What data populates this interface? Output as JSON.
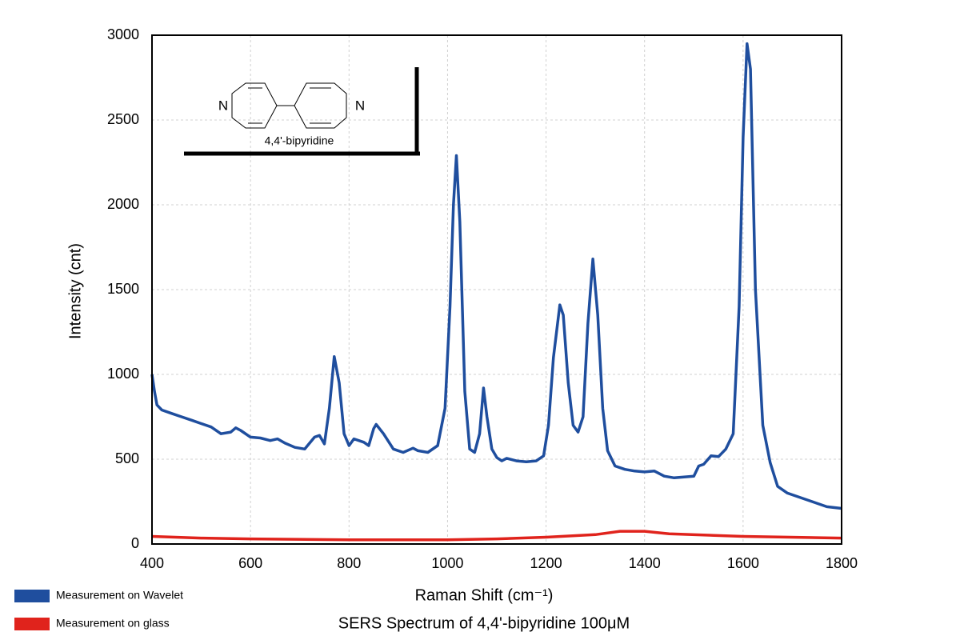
{
  "chart_data": {
    "type": "line",
    "title": "SERS Spectrum of 4,4'-bipyridine 100μM",
    "x_label": "Raman Shift (cm⁻¹)",
    "y_label": "Intensity (cnt)",
    "xlim": [
      400,
      1800
    ],
    "ylim": [
      0,
      3000
    ],
    "xticks": [
      400,
      600,
      800,
      1000,
      1200,
      1400,
      1600,
      1800
    ],
    "yticks": [
      0,
      500,
      1000,
      1500,
      2000,
      2500,
      3000
    ],
    "grid": true,
    "inset": {
      "caption": "4,4'-bipyridine",
      "atoms": [
        "N",
        "N"
      ]
    },
    "series": [
      {
        "name": "Measurement on Wavelet",
        "color": "#1f4e9e",
        "x": [
          400,
          405,
          410,
          420,
          440,
          460,
          480,
          500,
          520,
          540,
          560,
          570,
          580,
          600,
          620,
          640,
          655,
          670,
          690,
          710,
          730,
          740,
          750,
          760,
          770,
          780,
          790,
          800,
          810,
          830,
          840,
          850,
          855,
          870,
          890,
          910,
          930,
          940,
          960,
          980,
          995,
          1005,
          1012,
          1018,
          1025,
          1035,
          1045,
          1055,
          1065,
          1073,
          1080,
          1090,
          1100,
          1110,
          1120,
          1140,
          1160,
          1180,
          1195,
          1205,
          1215,
          1228,
          1235,
          1245,
          1255,
          1265,
          1275,
          1285,
          1295,
          1305,
          1315,
          1325,
          1340,
          1360,
          1380,
          1400,
          1420,
          1440,
          1460,
          1480,
          1500,
          1510,
          1520,
          1535,
          1550,
          1565,
          1580,
          1592,
          1600,
          1608,
          1615,
          1625,
          1640,
          1655,
          1670,
          1690,
          1710,
          1740,
          1770,
          1800
        ],
        "values": [
          1000,
          900,
          820,
          790,
          770,
          750,
          730,
          710,
          690,
          650,
          660,
          685,
          670,
          630,
          625,
          610,
          620,
          595,
          570,
          560,
          630,
          640,
          590,
          800,
          1105,
          950,
          650,
          580,
          620,
          600,
          580,
          680,
          705,
          650,
          560,
          540,
          565,
          550,
          540,
          580,
          800,
          1400,
          2000,
          2290,
          1900,
          900,
          560,
          540,
          650,
          920,
          750,
          560,
          510,
          490,
          505,
          490,
          485,
          490,
          520,
          700,
          1100,
          1410,
          1350,
          950,
          700,
          660,
          750,
          1300,
          1680,
          1350,
          800,
          550,
          460,
          440,
          430,
          425,
          430,
          400,
          390,
          395,
          400,
          460,
          470,
          520,
          515,
          560,
          650,
          1400,
          2400,
          2950,
          2800,
          1500,
          700,
          480,
          340,
          300,
          280,
          250,
          220,
          210
        ]
      },
      {
        "name": "Measurement on glass",
        "color": "#e0231c",
        "x": [
          400,
          500,
          600,
          800,
          1000,
          1100,
          1200,
          1300,
          1350,
          1400,
          1450,
          1600,
          1800
        ],
        "values": [
          45,
          35,
          30,
          25,
          25,
          30,
          40,
          55,
          75,
          75,
          60,
          45,
          35
        ]
      }
    ]
  }
}
